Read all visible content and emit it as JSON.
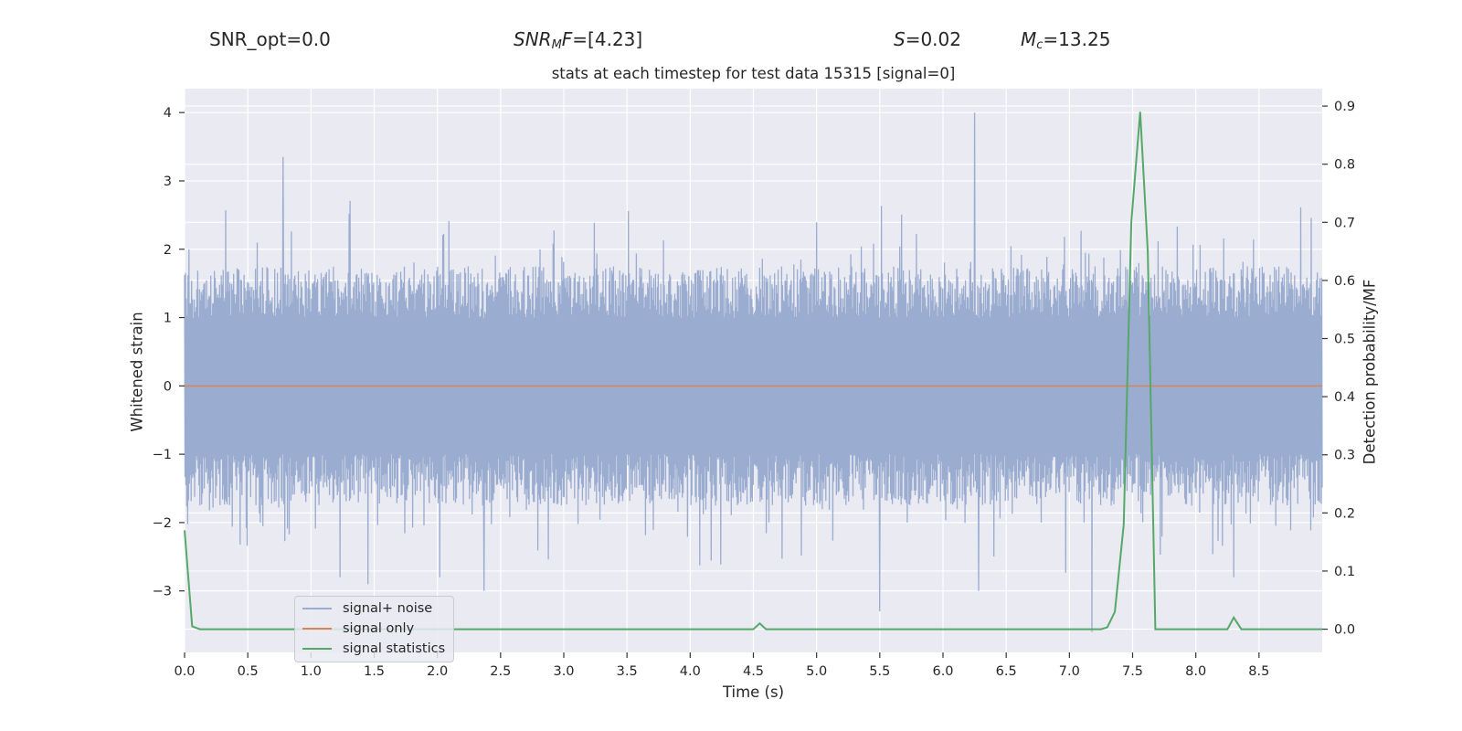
{
  "stats": {
    "snr_opt": "SNR_opt=0.0",
    "snr_mf_main": "SNR",
    "snr_mf_sub": "M",
    "snr_mf_tail": "F",
    "snr_mf_value": "=[4.23]",
    "s_symbol": "S",
    "s_value": "=0.02",
    "mc_symbol": "M",
    "mc_sub": "c",
    "mc_value": "=13.25"
  },
  "chart_data": {
    "type": "line",
    "title": "stats at each timestep for test data 15315 [signal=0]",
    "xlabel": "Time (s)",
    "ylabel": "Whitened strain",
    "ylabel_right": "Detection probability/MF",
    "xlim": [
      0.0,
      9.0
    ],
    "ylim": [
      -3.9,
      4.35
    ],
    "ylim_right": [
      -0.04,
      0.93
    ],
    "x_ticks": [
      "0.0",
      "0.5",
      "1.0",
      "1.5",
      "2.0",
      "2.5",
      "3.0",
      "3.5",
      "4.0",
      "4.5",
      "5.0",
      "5.5",
      "6.0",
      "6.5",
      "7.0",
      "7.5",
      "8.0",
      "8.5"
    ],
    "y_ticks": [
      "4",
      "3",
      "2",
      "1",
      "0",
      "−1",
      "−2",
      "−3"
    ],
    "y_ticks_right": [
      "0.9",
      "0.8",
      "0.7",
      "0.6",
      "0.5",
      "0.4",
      "0.3",
      "0.2",
      "0.1",
      "0.0"
    ],
    "grid": true,
    "legend_placement": "lower-left",
    "series": [
      {
        "name": "signal+ noise",
        "color": "#9aaccf",
        "note_envelope": "dense whitened noise, typical amplitude about ±1.6, peaks near 4.0 at t≈6.25 and 3.35 at t≈0.78, troughs near −3.6 at t≈7.18"
      },
      {
        "name": "signal only",
        "color": "#dd8452",
        "x": [
          0.0,
          9.0
        ],
        "y": [
          0.0,
          0.0
        ]
      },
      {
        "name": "signal statistics",
        "color": "#55a868",
        "axis": "right",
        "x": [
          0.0,
          0.06,
          0.12,
          0.5,
          1.0,
          2.0,
          3.0,
          4.0,
          4.5,
          4.55,
          4.6,
          5.0,
          6.0,
          7.0,
          7.25,
          7.3,
          7.36,
          7.43,
          7.49,
          7.56,
          7.62,
          7.68,
          7.8,
          8.0,
          8.25,
          8.3,
          8.36,
          8.5,
          9.0
        ],
        "y": [
          0.17,
          0.005,
          0.0,
          0.0,
          0.0,
          0.0,
          0.0,
          0.0,
          0.0,
          0.01,
          0.0,
          0.0,
          0.0,
          0.0,
          0.0,
          0.003,
          0.03,
          0.18,
          0.7,
          0.89,
          0.65,
          0.0,
          0.0,
          0.0,
          0.0,
          0.02,
          0.0,
          0.0,
          0.0
        ]
      }
    ]
  }
}
